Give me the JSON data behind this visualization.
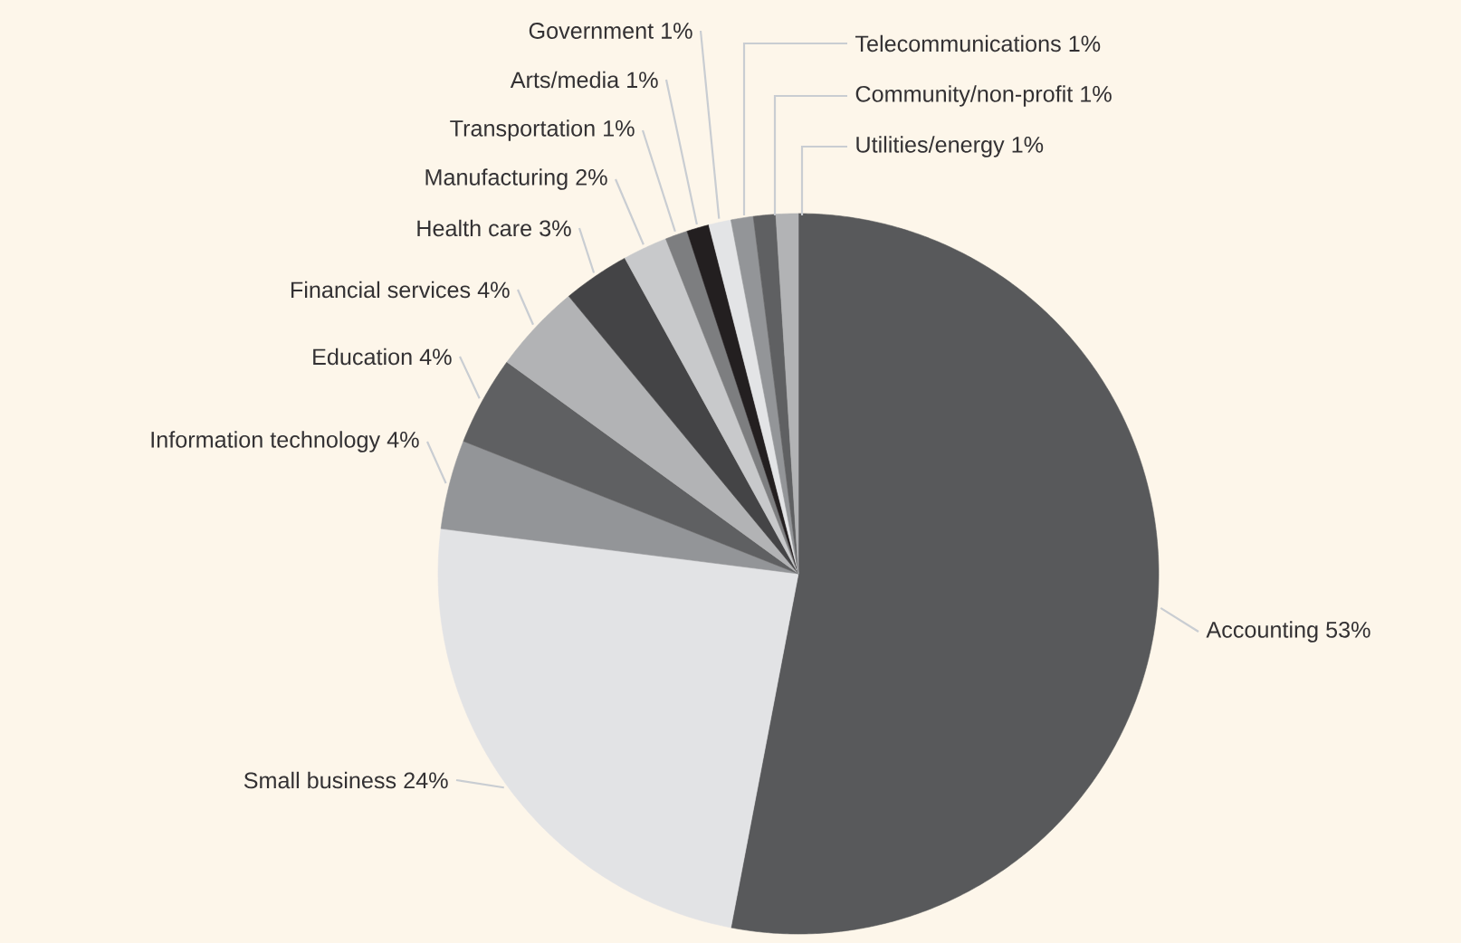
{
  "chart_data": {
    "type": "pie",
    "categories": [
      "Accounting",
      "Small business",
      "Information technology",
      "Education",
      "Financial services",
      "Health care",
      "Manufacturing",
      "Transportation",
      "Arts/media",
      "Government",
      "Telecommunications",
      "Community/non-profit",
      "Utilities/energy"
    ],
    "values": [
      53,
      24,
      4,
      4,
      4,
      3,
      2,
      1,
      1,
      1,
      1,
      1,
      1
    ],
    "value_labels": [
      "53%",
      "24%",
      "4%",
      "4%",
      "4%",
      "3%",
      "2%",
      "1%",
      "1%",
      "1%",
      "1%",
      "1%",
      "1%"
    ],
    "colors": [
      "#58595b",
      "#e2e3e5",
      "#939598",
      "#5f6062",
      "#b2b3b5",
      "#444446",
      "#c8c9cb",
      "#7d7e80",
      "#231f20",
      "#e3e4e6",
      "#939598",
      "#5f6062",
      "#b2b3b5"
    ]
  }
}
